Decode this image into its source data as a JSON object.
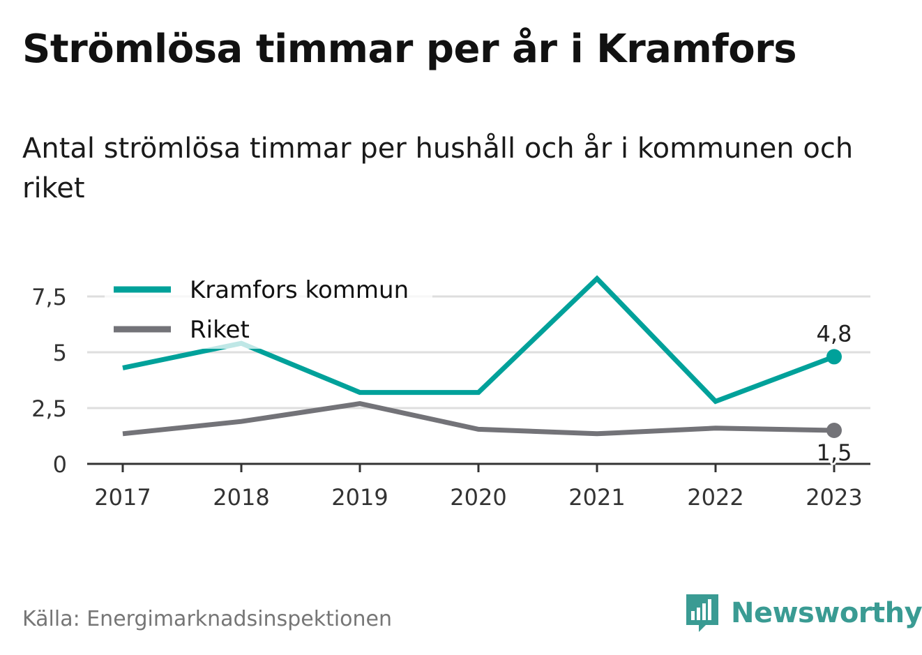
{
  "title": "Strömlösa timmar per år i Kramfors",
  "subtitle": "Antal strömlösa timmar per hushåll och år i kommunen och riket",
  "source": "Källa: Energimarknadsinspektionen",
  "brand": {
    "name": "Newsworthy",
    "icon": "newsworthy-logo-icon",
    "color": "#3a9b93"
  },
  "chart_data": {
    "type": "line",
    "x": [
      "2017",
      "2018",
      "2019",
      "2020",
      "2021",
      "2022",
      "2023"
    ],
    "series": [
      {
        "name": "Kramfors kommun",
        "color": "#00a19a",
        "values": [
          4.3,
          5.4,
          3.2,
          3.2,
          8.3,
          2.8,
          4.8
        ],
        "end_label": "4,8"
      },
      {
        "name": "Riket",
        "color": "#737378",
        "values": [
          1.35,
          1.9,
          2.7,
          1.55,
          1.35,
          1.6,
          1.5
        ],
        "end_label": "1,5"
      }
    ],
    "y_ticks": [
      0,
      2.5,
      5,
      7.5
    ],
    "y_tick_labels": [
      "0",
      "2,5",
      "5",
      "7,5"
    ],
    "ylim": [
      0,
      8.3
    ],
    "grid": true,
    "legend_position": "top-left"
  }
}
